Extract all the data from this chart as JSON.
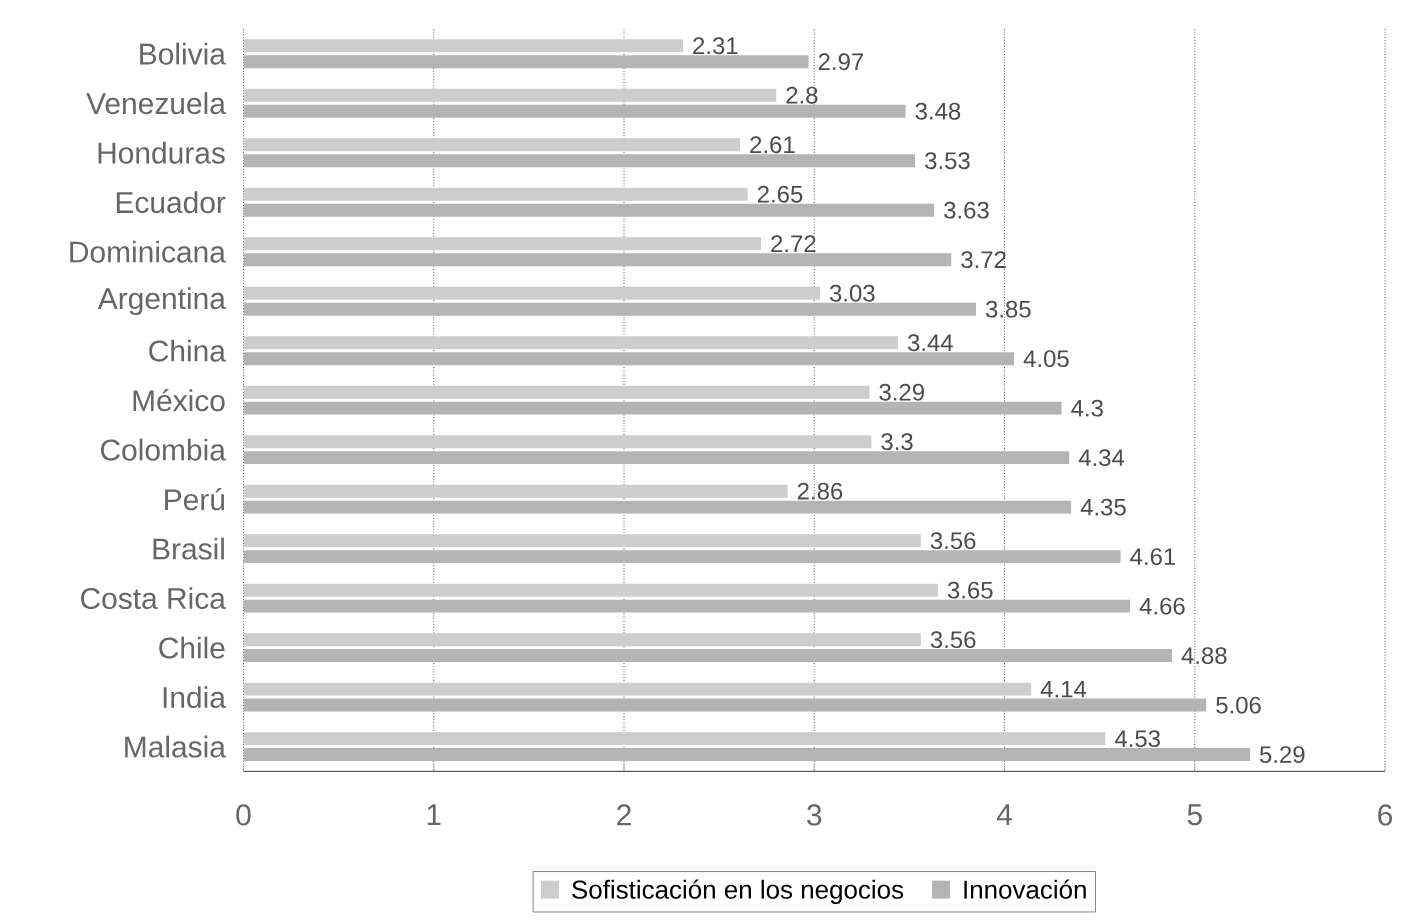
{
  "chart_data": {
    "type": "bar",
    "orientation": "horizontal",
    "categories": [
      "Bolivia",
      "Venezuela",
      "Honduras",
      "Ecuador",
      "Dominicana",
      "Argentina",
      "China",
      "México",
      "Colombia",
      "Perú",
      "Brasil",
      "Costa Rica",
      "Chile",
      "India",
      "Malasia"
    ],
    "series": [
      {
        "name": "Sofisticación en los negocios",
        "color": "#cdcdcd",
        "values": [
          2.31,
          2.8,
          2.61,
          2.65,
          2.72,
          3.03,
          3.44,
          3.29,
          3.3,
          2.86,
          3.56,
          3.65,
          3.56,
          4.14,
          4.53
        ]
      },
      {
        "name": "Innovación",
        "color": "#b4b4b4",
        "values": [
          2.97,
          3.48,
          3.53,
          3.63,
          3.72,
          3.85,
          4.05,
          4.3,
          4.34,
          4.35,
          4.61,
          4.66,
          4.88,
          5.06,
          5.29
        ]
      }
    ],
    "xlim": [
      0,
      6
    ],
    "xticks": [
      0,
      1,
      2,
      3,
      4,
      5,
      6
    ],
    "grid": "x",
    "legend": "bottom",
    "data_labels": true
  }
}
